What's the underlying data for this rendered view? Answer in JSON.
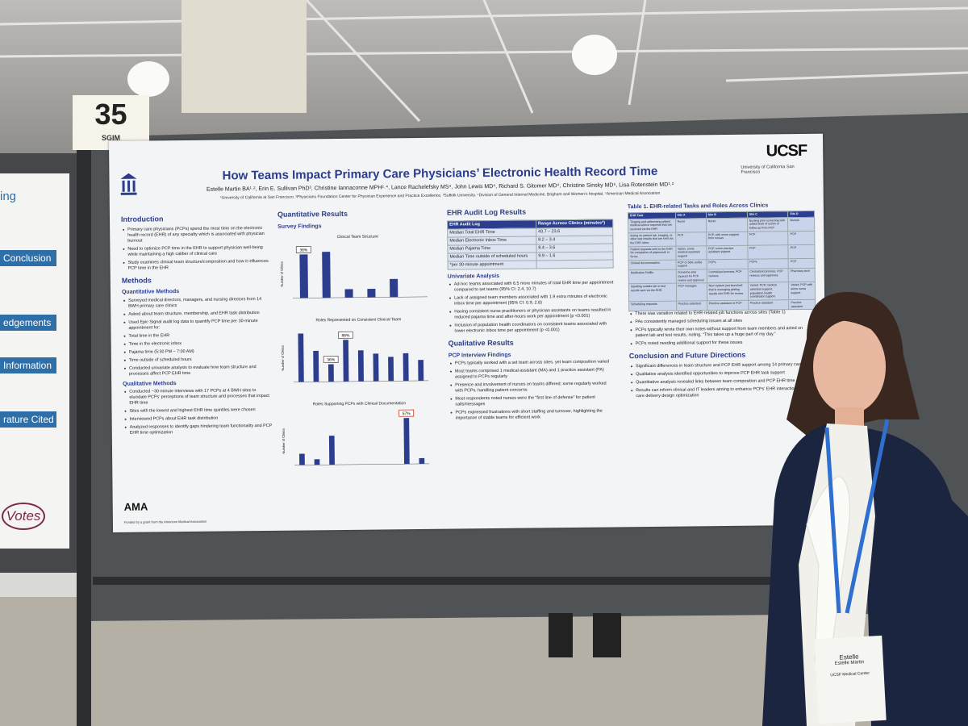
{
  "sign": {
    "number": "35",
    "label": "SGIM"
  },
  "left_poster": {
    "fragment": "ing",
    "labels": [
      "Conclusion",
      "edgements",
      "Information",
      "rature Cited"
    ],
    "votes": "Votes"
  },
  "poster": {
    "title": "How Teams Impact Primary Care Physicians’ Electronic Health Record Time",
    "authors": "Estelle Martin BA¹˒², Erin E. Sullivan PhD³, Christine Iannaconne MPH²˒⁴, Lance Rachelefsky MS⁴, John Lewis MD⁴, Richard S. Gitomer MD⁴, Christine Sinsky MD⁵, Lisa Rotenstein MD¹˒²",
    "affiliations": "¹University of California at San Francisco, ²Physicians Foundation Center for Physician Experience and Practice Excellence, ³Suffolk University, ⁴Division of General Internal Medicine, Brigham and Women’s hospital, ⁵American Medical Association",
    "logo": "UCSF",
    "logo_sub": "University of California San Francisco",
    "funding_logo": "AMA",
    "funding": "Funded by a grant from the American Medical Association",
    "col1": [
      {
        "heading": "Introduction"
      },
      {
        "bullet": "Primary care physicians (PCPs) spend the most time on the electronic health record (EHR) of any specialty which is associated with physician burnout"
      },
      {
        "bullet": "Need to optimize PCP time in the EHR to support physician well-being while maintaining a high caliber of clinical care"
      },
      {
        "bullet": "Study examines clinical team structure/composition and how it influences PCP time in the EHR"
      },
      {
        "heading": "Methods"
      },
      {
        "subheading": "Quantitative Methods"
      },
      {
        "bullet": "Surveyed medical directors, managers, and nursing directors from 14 BWH primary care clinics"
      },
      {
        "bullet": "Asked about team structure, membership, and EHR task distribution"
      },
      {
        "bullet": "Used Epic Signal audit log data to quantify PCP time per 30-minute appointment for:"
      },
      {
        "bullet": "Total time in the EHR"
      },
      {
        "bullet": "Time in the electronic inbox"
      },
      {
        "bullet": "Pajama time (5:30 PM – 7:00 AM)"
      },
      {
        "bullet": "Time outside of scheduled hours"
      },
      {
        "bullet": "Conducted univariate analysis to evaluate how team structure and processes affect PCP EHR time"
      },
      {
        "subheading": "Qualitative Methods"
      },
      {
        "bullet": "Conducted ~30-minute interviews with 17 PCPs at 4 BWH sites to elucidate PCPs’ perceptions of team structure and processes that impact EHR time"
      },
      {
        "bullet": "Sites with the lowest and highest EHR time quintiles were chosen"
      },
      {
        "bullet": "Interviewed PCPs about EHR task distribution"
      },
      {
        "bullet": "Analyzed responses to identify gaps hindering team functionality and PCP EHR time optimization"
      }
    ],
    "col2": {
      "heading": "Quantitative Results",
      "subheading": "Survey Findings",
      "charts": [
        {
          "type": "bar",
          "title": "Clinical Team Structure",
          "y_label": "Number of Clinics",
          "values": [
            36,
            38,
            7,
            7,
            15,
            0
          ],
          "value_labels": [
            "36%",
            null,
            null,
            null,
            null,
            null
          ],
          "ylim": [
            0,
            40
          ]
        },
        {
          "type": "bar",
          "title": "Roles Represented on Consistent Clinical Team",
          "y_label": "Number of Clinics",
          "values": [
            100,
            64,
            36,
            86,
            64,
            57,
            50,
            57,
            43
          ],
          "value_labels": [
            null,
            null,
            "36%",
            "86%",
            null,
            null,
            null,
            null,
            null
          ],
          "ylim": [
            0,
            100
          ]
        },
        {
          "type": "bar",
          "title": "Roles Supporting PCPs with Clinical Documentation",
          "y_label": "Number of Clinics",
          "values": [
            14,
            7,
            36,
            0,
            0,
            0,
            0,
            57,
            7
          ],
          "value_labels": [
            null,
            null,
            null,
            null,
            null,
            null,
            null,
            "57%",
            null
          ],
          "ylim": [
            0,
            60
          ]
        }
      ]
    },
    "col3": {
      "heading": "EHR Audit Log Results",
      "audit_table": [
        [
          "EHR Audit Log",
          "Range Across Clinics (minutes*)"
        ],
        [
          "Median Total EHR Time",
          "43.7 – 23.6"
        ],
        [
          "Median Electronic Inbox Time",
          "8.2 – 3.4"
        ],
        [
          "Median Pajama Time",
          "8.4 – 3.6"
        ],
        [
          "Median Time outside of scheduled hours",
          "9.9 – 1.6"
        ],
        [
          "*per 30-minute appointment",
          ""
        ]
      ],
      "blocks": [
        {
          "subheading": "Univariate Analysis"
        },
        {
          "bullet": "Ad-hoc teams associated with 6.5 more minutes of total EHR time per appointment compared to set teams (95% CI: 2.4, 10.7)"
        },
        {
          "bullet": "Lack of assigned team members associated with 1.9 extra minutes of electronic inbox time per appointment (95% CI: 0.9, 2.8)"
        },
        {
          "bullet": "Having consistent nurse practitioners or physician assistants on teams resulted in reduced pajama time and after-hours work per appointment (p <0.001)"
        },
        {
          "bullet": "Inclusion of population health coordinators on consistent teams associated with lower electronic inbox time per appointment (p <0.001)"
        },
        {
          "heading": "Qualitative Results"
        },
        {
          "subheading": "PCP Interview Findings"
        },
        {
          "bullet": "PCPs typically worked with a set team across sites, yet team composition varied"
        },
        {
          "bullet": "Most teams comprised 1 medical assistant (MA) and 1 practice assistant (PA) assigned to PCPs regularly"
        },
        {
          "bullet": "Presence and involvement of nurses on teams differed; some regularly worked with PCPs, handling patient concerns"
        },
        {
          "bullet": "Most respondents noted nurses were the “first line of defense” for patient calls/messages"
        },
        {
          "bullet": "PCPs expressed frustrations with short staffing and turnover, highlighting the importance of stable teams for efficient work"
        }
      ]
    },
    "col4": {
      "table_title": "Table 1. EHR-related Tasks and Roles Across Clinics",
      "task_table": [
        [
          "EHR Task",
          "Site A",
          "Site B",
          "Site C",
          "Site D"
        ],
        [
          "Triaging and addressing patient medical advice requests that are received via the EHR",
          "Nurse",
          "Nurse",
          "Nursing pool screening with added level of action or follow-up from PCP",
          "Nurses"
        ],
        [
          "Acting on patient lab, imaging, or other test results that are sent via the EHR inbox",
          "PCP",
          "PCP, with some support from nurses",
          "PCP",
          "PCP"
        ],
        [
          "Patient requests sent to the EHR for completion of paperwork or forms",
          "Varies, some medical assistant support",
          "PCP, some practice assistant support",
          "PCP",
          "PCP"
        ],
        [
          "Clinical documentation",
          "PCP or 50% scribe support",
          "PCPs",
          "PCPs",
          "PCP"
        ],
        [
          "Medication Refills",
          "Someone else (queue) for PCP review and approval",
          "Centralized process, PCP reviews",
          "Centralized process, PCP reviews and approves",
          "Pharmacy tech"
        ],
        [
          "Inputting outside lab or test results sent via the EHR",
          "PCP manages",
          "New system just launched that is managing getting results into EHR for review",
          "Varied: PCP, medical assistant support, population health coordinator support",
          "Varied: PCP with some nurse support"
        ],
        [
          "Scheduling requests",
          "Practice assistant",
          "Practice assistant or PCP",
          "Practice assistant",
          "Practice assistant"
        ]
      ],
      "blocks": [
        {
          "bullet": "There was variation related to EHR-related job functions across sites (Table 1)"
        },
        {
          "bullet": "PAs consistently managed scheduling issues at all sites"
        },
        {
          "bullet": "PCPs typically wrote their own notes without support from team members and acted on patient lab and test results, noting, “This takes up a huge part of my day.”"
        },
        {
          "bullet": "PCPs noted needing additional support for these issues"
        },
        {
          "heading": "Conclusion and Future Directions"
        },
        {
          "bullet": "Significant differences in team structure and PCP EHR support among 14 primary care clinics"
        },
        {
          "bullet": "Qualitative analysis identified opportunities to improve PCP EHR task support"
        },
        {
          "bullet": "Quantitative analysis revealed links between team composition and PCP EHR time"
        },
        {
          "bullet": "Results can inform clinical and IT leaders aiming to enhance PCPs’ EHR interactions and care delivery design optimization"
        }
      ]
    }
  },
  "badge": {
    "first_name": "Estelle",
    "full_name": "Estelle Martin",
    "organization": "UCSF Medical Center"
  }
}
